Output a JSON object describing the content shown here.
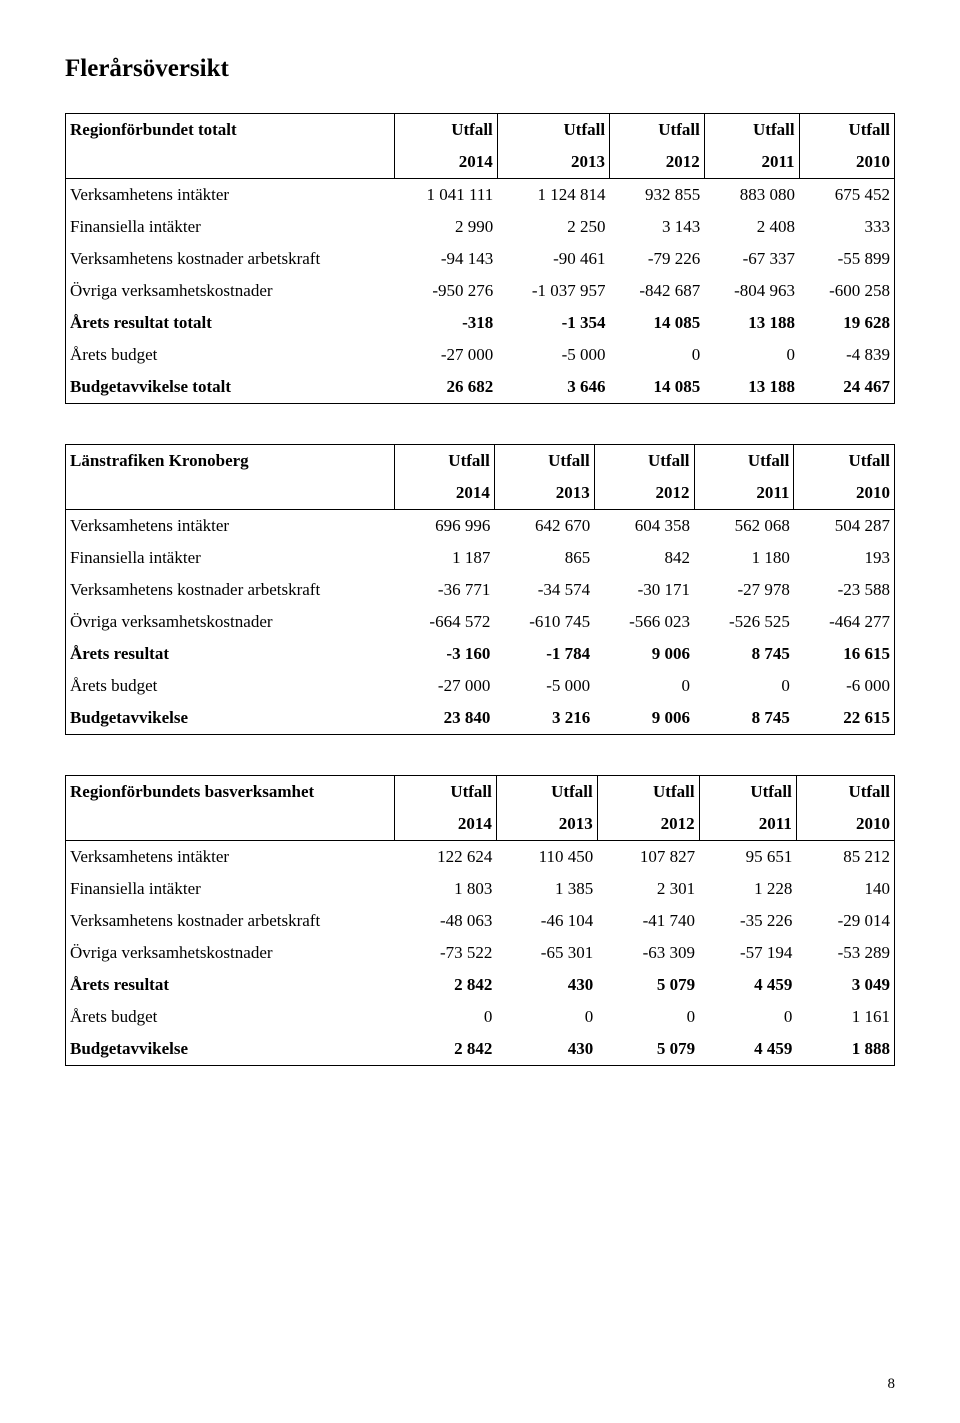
{
  "page_title": "Flerårsöversikt",
  "page_number": "8",
  "col_headers": [
    "Utfall",
    "Utfall",
    "Utfall",
    "Utfall",
    "Utfall"
  ],
  "years": [
    "2014",
    "2013",
    "2012",
    "2011",
    "2010"
  ],
  "tables": [
    {
      "title": "Regionförbundet totalt",
      "rows": [
        {
          "label": "Verksamhetens intäkter",
          "bold": false,
          "cells": [
            "1 041 111",
            "1 124 814",
            "932 855",
            "883 080",
            "675 452"
          ]
        },
        {
          "label": "Finansiella intäkter",
          "bold": false,
          "cells": [
            "2 990",
            "2 250",
            "3 143",
            "2 408",
            "333"
          ]
        },
        {
          "label": "Verksamhetens kostnader arbetskraft",
          "bold": false,
          "cells": [
            "-94 143",
            "-90 461",
            "-79 226",
            "-67 337",
            "-55 899"
          ]
        },
        {
          "label": "Övriga verksamhetskostnader",
          "bold": false,
          "cells": [
            "-950 276",
            "-1 037 957",
            "-842 687",
            "-804 963",
            "-600 258"
          ]
        },
        {
          "label": "Årets resultat totalt",
          "bold": true,
          "cells": [
            "-318",
            "-1 354",
            "14 085",
            "13 188",
            "19 628"
          ]
        },
        {
          "label": "Årets budget",
          "bold": false,
          "cells": [
            "-27 000",
            "-5 000",
            "0",
            "0",
            "-4 839"
          ]
        },
        {
          "label": "Budgetavvikelse totalt",
          "bold": true,
          "cells": [
            "26 682",
            "3 646",
            "14 085",
            "13 188",
            "24 467"
          ]
        }
      ]
    },
    {
      "title": "Länstrafiken Kronoberg",
      "rows": [
        {
          "label": "Verksamhetens intäkter",
          "bold": false,
          "cells": [
            "696 996",
            "642 670",
            "604 358",
            "562 068",
            "504 287"
          ]
        },
        {
          "label": "Finansiella intäkter",
          "bold": false,
          "cells": [
            "1 187",
            "865",
            "842",
            "1 180",
            "193"
          ]
        },
        {
          "label": "Verksamhetens kostnader arbetskraft",
          "bold": false,
          "cells": [
            "-36 771",
            "-34 574",
            "-30 171",
            "-27 978",
            "-23 588"
          ]
        },
        {
          "label": "Övriga verksamhetskostnader",
          "bold": false,
          "cells": [
            "-664 572",
            "-610 745",
            "-566 023",
            "-526 525",
            "-464 277"
          ]
        },
        {
          "label": "Årets resultat",
          "bold": true,
          "cells": [
            "-3 160",
            "-1 784",
            "9 006",
            "8 745",
            "16 615"
          ]
        },
        {
          "label": "Årets budget",
          "bold": false,
          "cells": [
            "-27 000",
            "-5 000",
            "0",
            "0",
            "-6 000"
          ]
        },
        {
          "label": "Budgetavvikelse",
          "bold": true,
          "cells": [
            "23 840",
            "3 216",
            "9 006",
            "8 745",
            "22 615"
          ]
        }
      ]
    },
    {
      "title": "Regionförbundets basverksamhet",
      "rows": [
        {
          "label": "Verksamhetens intäkter",
          "bold": false,
          "cells": [
            "122 624",
            "110 450",
            "107 827",
            "95 651",
            "85 212"
          ]
        },
        {
          "label": "Finansiella intäkter",
          "bold": false,
          "cells": [
            "1 803",
            "1 385",
            "2 301",
            "1 228",
            "140"
          ]
        },
        {
          "label": "Verksamhetens kostnader arbetskraft",
          "bold": false,
          "cells": [
            "-48 063",
            "-46 104",
            "-41 740",
            "-35 226",
            "-29 014"
          ]
        },
        {
          "label": "Övriga verksamhetskostnader",
          "bold": false,
          "cells": [
            "-73 522",
            "-65 301",
            "-63 309",
            "-57 194",
            "-53 289"
          ]
        },
        {
          "label": "Årets resultat",
          "bold": true,
          "cells": [
            "2 842",
            "430",
            "5 079",
            "4 459",
            "3 049"
          ]
        },
        {
          "label": "Årets budget",
          "bold": false,
          "cells": [
            "0",
            "0",
            "0",
            "0",
            "1 161"
          ]
        },
        {
          "label": "Budgetavvikelse",
          "bold": true,
          "cells": [
            "2 842",
            "430",
            "5 079",
            "4 459",
            "1 888"
          ]
        }
      ]
    }
  ]
}
